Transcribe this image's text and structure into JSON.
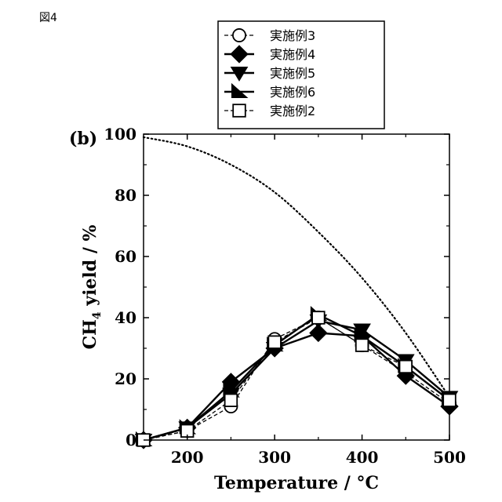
{
  "figure_label": "図4",
  "chart_data": {
    "type": "line",
    "panel_label": "(b)",
    "xlabel": "Temperature / °C",
    "ylabel_main": "CH",
    "ylabel_sub": "4",
    "ylabel_rest": "  yield / %",
    "xlim": [
      150,
      500
    ],
    "ylim": [
      0,
      100
    ],
    "xticks": [
      200,
      300,
      400,
      500
    ],
    "yticks": [
      0,
      20,
      40,
      60,
      80,
      100
    ],
    "grid": false,
    "legend_position": "top-center",
    "x": [
      150,
      200,
      250,
      300,
      350,
      400,
      450,
      500
    ],
    "equilibrium_curve": {
      "x": [
        150,
        200,
        250,
        300,
        350,
        400,
        450,
        500
      ],
      "values": [
        99,
        96,
        90,
        81,
        68,
        53,
        35,
        14
      ],
      "style": "dotted"
    },
    "series": [
      {
        "name": "実施例3",
        "marker": "circle-open",
        "line": "dash",
        "values": [
          0,
          3,
          11,
          33,
          40,
          31,
          22,
          12
        ]
      },
      {
        "name": "実施例4",
        "marker": "diamond-filled",
        "line": "solid",
        "values": [
          0,
          4,
          19,
          30,
          35,
          34,
          21,
          11
        ]
      },
      {
        "name": "実施例5",
        "marker": "triangle-down-filled",
        "line": "solid",
        "values": [
          0,
          4,
          15,
          30,
          39,
          36,
          26,
          14
        ]
      },
      {
        "name": "実施例6",
        "marker": "half-triangle-filled",
        "line": "solid",
        "values": [
          0,
          4,
          16,
          31,
          41,
          34,
          24,
          13
        ]
      },
      {
        "name": "実施例2",
        "marker": "square-open",
        "line": "dash",
        "values": [
          0,
          3,
          13,
          32,
          40,
          31,
          24,
          13
        ]
      }
    ]
  }
}
